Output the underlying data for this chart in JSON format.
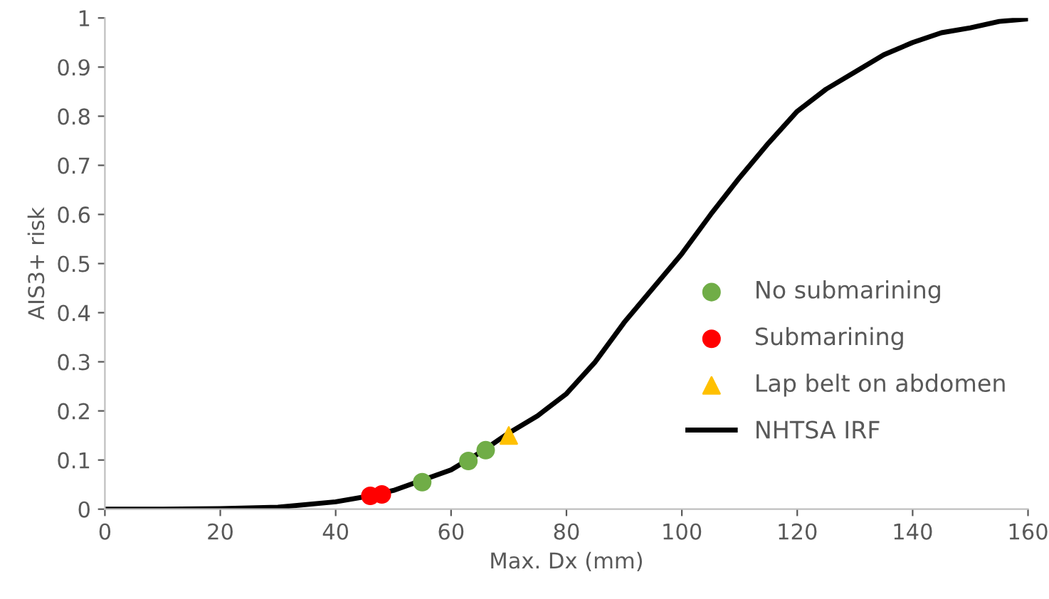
{
  "chart_data": {
    "type": "scatter",
    "xlabel": "Max. Dx (mm)",
    "ylabel": "AIS3+ risk",
    "xlim": [
      0,
      160
    ],
    "ylim": [
      0,
      1
    ],
    "xticks": [
      0,
      20,
      40,
      60,
      80,
      100,
      120,
      140,
      160
    ],
    "yticks": [
      0,
      0.1,
      0.2,
      0.3,
      0.4,
      0.5,
      0.6,
      0.7,
      0.8,
      0.9,
      1
    ],
    "grid": false,
    "legend": "right",
    "series": [
      {
        "name": "No submarining",
        "marker": "circle",
        "color": "#70ad47",
        "x": [
          55,
          63,
          66
        ],
        "values": [
          0.055,
          0.098,
          0.12
        ]
      },
      {
        "name": "Submarining",
        "marker": "circle",
        "color": "#ff0000",
        "x": [
          46,
          48
        ],
        "values": [
          0.027,
          0.03
        ]
      },
      {
        "name": "Lap belt on abdomen",
        "marker": "triangle",
        "color": "#ffc000",
        "x": [
          70
        ],
        "values": [
          0.15
        ]
      },
      {
        "name": "NHTSA IRF",
        "type": "line",
        "marker": "none",
        "color": "#000000",
        "x": [
          0,
          10,
          20,
          30,
          40,
          45,
          50,
          60,
          65,
          70,
          75,
          80,
          85,
          90,
          95,
          100,
          105,
          110,
          115,
          120,
          125,
          130,
          135,
          140,
          145,
          150,
          155,
          160
        ],
        "values": [
          0,
          0,
          0.001,
          0.004,
          0.015,
          0.025,
          0.038,
          0.08,
          0.115,
          0.155,
          0.19,
          0.235,
          0.3,
          0.38,
          0.45,
          0.52,
          0.6,
          0.675,
          0.745,
          0.81,
          0.855,
          0.89,
          0.925,
          0.95,
          0.97,
          0.98,
          0.993,
          0.998
        ]
      }
    ]
  }
}
